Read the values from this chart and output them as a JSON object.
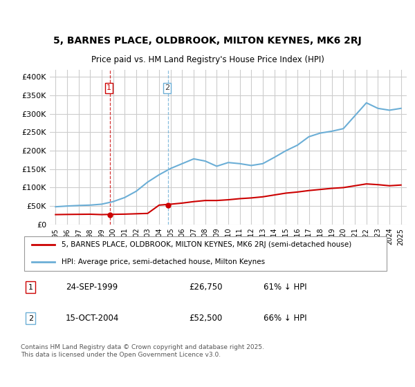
{
  "title": "5, BARNES PLACE, OLDBROOK, MILTON KEYNES, MK6 2RJ",
  "subtitle": "Price paid vs. HM Land Registry's House Price Index (HPI)",
  "legend_line1": "5, BARNES PLACE, OLDBROOK, MILTON KEYNES, MK6 2RJ (semi-detached house)",
  "legend_line2": "HPI: Average price, semi-detached house, Milton Keynes",
  "footnote": "Contains HM Land Registry data © Crown copyright and database right 2025.\nThis data is licensed under the Open Government Licence v3.0.",
  "transaction1_label": "1",
  "transaction1_date": "24-SEP-1999",
  "transaction1_price": "£26,750",
  "transaction1_pct": "61% ↓ HPI",
  "transaction2_label": "2",
  "transaction2_date": "15-OCT-2004",
  "transaction2_price": "£52,500",
  "transaction2_pct": "66% ↓ HPI",
  "hpi_color": "#6baed6",
  "price_color": "#cc0000",
  "vline1_color": "#cc0000",
  "vline2_color": "#6baed6",
  "background_color": "#ffffff",
  "grid_color": "#cccccc",
  "years": [
    1995,
    1996,
    1997,
    1998,
    1999,
    2000,
    2001,
    2002,
    2003,
    2004,
    2005,
    2006,
    2007,
    2008,
    2009,
    2010,
    2011,
    2012,
    2013,
    2014,
    2015,
    2016,
    2017,
    2018,
    2019,
    2020,
    2021,
    2022,
    2023,
    2024,
    2025
  ],
  "hpi_values": [
    48000,
    50000,
    51500,
    52500,
    55000,
    62000,
    73000,
    90000,
    115000,
    135000,
    152000,
    165000,
    178000,
    172000,
    158000,
    168000,
    165000,
    160000,
    165000,
    182000,
    200000,
    215000,
    238000,
    248000,
    253000,
    260000,
    295000,
    330000,
    315000,
    310000,
    315000
  ],
  "price_paid_years": [
    1999.73,
    2004.79
  ],
  "price_paid_values": [
    26750,
    52500
  ],
  "price_line_years": [
    1995,
    1996,
    1997,
    1998,
    1999,
    2000,
    2001,
    2002,
    2003,
    2004,
    2005,
    2006,
    2007,
    2008,
    2009,
    2010,
    2011,
    2012,
    2013,
    2014,
    2015,
    2016,
    2017,
    2018,
    2019,
    2020,
    2021,
    2022,
    2023,
    2024,
    2025
  ],
  "price_line_values": [
    26750,
    27200,
    27500,
    27800,
    26750,
    27500,
    28000,
    29000,
    30000,
    52500,
    55000,
    58000,
    62000,
    65000,
    65000,
    67000,
    70000,
    72000,
    75000,
    80000,
    85000,
    88000,
    92000,
    95000,
    98000,
    100000,
    105000,
    110000,
    108000,
    105000,
    107000
  ],
  "ylim": [
    0,
    420000
  ],
  "xlim_min": 1994.5,
  "xlim_max": 2025.5,
  "yticks": [
    0,
    50000,
    100000,
    150000,
    200000,
    250000,
    300000,
    350000,
    400000
  ],
  "ytick_labels": [
    "£0",
    "£50K",
    "£100K",
    "£150K",
    "£200K",
    "£250K",
    "£300K",
    "£350K",
    "£400K"
  ],
  "xticks": [
    1995,
    1996,
    1997,
    1998,
    1999,
    2000,
    2001,
    2002,
    2003,
    2004,
    2005,
    2006,
    2007,
    2008,
    2009,
    2010,
    2011,
    2012,
    2013,
    2014,
    2015,
    2016,
    2017,
    2018,
    2019,
    2020,
    2021,
    2022,
    2023,
    2024,
    2025
  ],
  "vline1_x": 1999.73,
  "vline2_x": 2004.79
}
